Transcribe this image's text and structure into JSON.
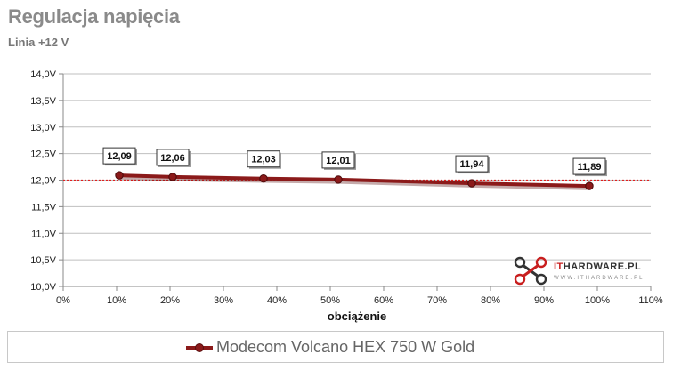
{
  "title": "Regulacja napięcia",
  "subtitle": "Linia +12 V",
  "chart_data": {
    "type": "line",
    "xlabel": "obciążenie",
    "ylabel": "",
    "xlim": [
      0,
      110
    ],
    "ylim": [
      10.0,
      14.0
    ],
    "x_ticks": [
      "0%",
      "10%",
      "20%",
      "30%",
      "40%",
      "50%",
      "60%",
      "70%",
      "80%",
      "90%",
      "100%",
      "110%"
    ],
    "y_ticks": [
      "10,0V",
      "10,5V",
      "11,0V",
      "11,5V",
      "12,0V",
      "12,5V",
      "13,0V",
      "13,5V",
      "14,0V"
    ],
    "reference_line": 12.0,
    "grid": "horizontal",
    "legend_position": "bottom",
    "series": [
      {
        "name": "Modecom Volcano HEX 750 W Gold",
        "color": "#8b1a1a",
        "x": [
          10.5,
          20.5,
          37.5,
          51.5,
          76.5,
          98.5
        ],
        "values": [
          12.09,
          12.06,
          12.03,
          12.01,
          11.94,
          11.89
        ],
        "labels": [
          "12,09",
          "12,06",
          "12,03",
          "12,01",
          "11,94",
          "11,89"
        ]
      }
    ]
  },
  "watermark": {
    "brand": "ITHARDWARE.PL",
    "brand_accent": "IT",
    "tagline": "WWW.ITHARDWARE.PL",
    "icon": "crossed-tools-logo-icon"
  }
}
